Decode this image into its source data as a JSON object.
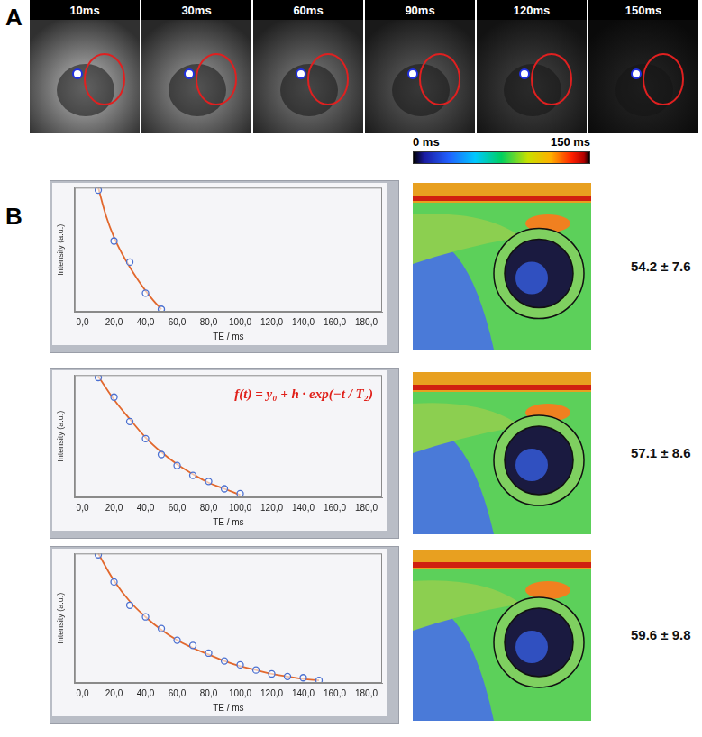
{
  "panel_labels": [
    "A",
    "B"
  ],
  "images": {
    "labels": [
      "10ms",
      "30ms",
      "60ms",
      "90ms",
      "120ms",
      "150ms"
    ]
  },
  "colorbar": {
    "range": [
      0,
      150
    ],
    "ticks": [
      {
        "value": 0,
        "label": "0 ms"
      },
      {
        "value": 150,
        "label": "150 ms"
      }
    ]
  },
  "maps": {
    "results": [
      "54.2 ± 7.6",
      "57.1 ± 8.6",
      "59.6 ± 9.8"
    ]
  },
  "chart_data": [
    {
      "type": "scatter",
      "x_label": "TE / ms",
      "y_label": "Intensity (a.u.)",
      "xlim": [
        -5,
        190
      ],
      "ylim": [
        0,
        100
      ],
      "tick_labels": "x",
      "grid": false,
      "xticks": [
        {
          "value": 0,
          "label": "0,0"
        },
        {
          "value": 20,
          "label": "20,0"
        },
        {
          "value": 40,
          "label": "40,0"
        },
        {
          "value": 60,
          "label": "60,0"
        },
        {
          "value": 80,
          "label": "80,0"
        },
        {
          "value": 100,
          "label": "100,0"
        },
        {
          "value": 120,
          "label": "120,0"
        },
        {
          "value": 140,
          "label": "140,0"
        },
        {
          "value": 160,
          "label": "160,0"
        },
        {
          "value": 180,
          "label": "180,0"
        }
      ],
      "series": [
        {
          "type": "scatter",
          "marker": "circle",
          "color": "#4a6fd0",
          "x": [
            10,
            20,
            30,
            40,
            50
          ],
          "values": [
            98,
            57,
            40,
            15,
            2
          ]
        },
        {
          "type": "line",
          "marker": "none",
          "line_style": "solid",
          "color": "#e2682e",
          "x": [
            10,
            15,
            20,
            25,
            30,
            35,
            40,
            45,
            50
          ],
          "values": [
            100,
            77,
            60,
            47,
            36,
            26,
            17,
            9,
            2
          ]
        }
      ]
    },
    {
      "type": "scatter",
      "x_label": "TE / ms",
      "y_label": "Intensity (a.u.)",
      "xlim": [
        -5,
        190
      ],
      "ylim": [
        0,
        100
      ],
      "tick_labels": "x",
      "grid": false,
      "annotation": "f(t) = y₀ + h · exp(−t / T₂)",
      "xticks": [
        {
          "value": 0,
          "label": "0,0"
        },
        {
          "value": 20,
          "label": "20,0"
        },
        {
          "value": 40,
          "label": "40,0"
        },
        {
          "value": 60,
          "label": "60,0"
        },
        {
          "value": 80,
          "label": "80,0"
        },
        {
          "value": 100,
          "label": "100,0"
        },
        {
          "value": 120,
          "label": "120,0"
        },
        {
          "value": 140,
          "label": "140,0"
        },
        {
          "value": 160,
          "label": "160,0"
        },
        {
          "value": 180,
          "label": "180,0"
        }
      ],
      "series": [
        {
          "type": "scatter",
          "marker": "circle",
          "color": "#4a6fd0",
          "x": [
            10,
            20,
            30,
            40,
            50,
            60,
            70,
            80,
            90,
            100
          ],
          "values": [
            98,
            82,
            62,
            48,
            35,
            26,
            18,
            13,
            7,
            3
          ]
        },
        {
          "type": "line",
          "marker": "none",
          "line_style": "solid",
          "color": "#e2682e",
          "x": [
            10,
            20,
            30,
            40,
            50,
            60,
            70,
            80,
            90,
            100
          ],
          "values": [
            99,
            80,
            64,
            49,
            37,
            27,
            19,
            12,
            7,
            2
          ]
        }
      ]
    },
    {
      "type": "scatter",
      "x_label": "TE / ms",
      "y_label": "Intensity (a.u.)",
      "xlim": [
        -5,
        190
      ],
      "ylim": [
        0,
        100
      ],
      "tick_labels": "x",
      "grid": false,
      "xticks": [
        {
          "value": 0,
          "label": "0,0"
        },
        {
          "value": 20,
          "label": "20,0"
        },
        {
          "value": 40,
          "label": "40,0"
        },
        {
          "value": 60,
          "label": "60,0"
        },
        {
          "value": 80,
          "label": "80,0"
        },
        {
          "value": 100,
          "label": "100,0"
        },
        {
          "value": 120,
          "label": "120,0"
        },
        {
          "value": 140,
          "label": "140,0"
        },
        {
          "value": 160,
          "label": "160,0"
        },
        {
          "value": 180,
          "label": "180,0"
        }
      ],
      "series": [
        {
          "type": "scatter",
          "marker": "circle",
          "color": "#4a6fd0",
          "x": [
            10,
            20,
            30,
            40,
            50,
            60,
            70,
            80,
            90,
            100,
            110,
            120,
            130,
            140,
            150
          ],
          "values": [
            99,
            78,
            60,
            51,
            42,
            33,
            29,
            23,
            17,
            14,
            10,
            7,
            5,
            4,
            2
          ]
        },
        {
          "type": "line",
          "marker": "none",
          "line_style": "solid",
          "color": "#e2682e",
          "x": [
            10,
            20,
            30,
            40,
            50,
            60,
            70,
            80,
            90,
            100,
            110,
            120,
            130,
            140,
            150
          ],
          "values": [
            100,
            79,
            63,
            51,
            41,
            33,
            27,
            22,
            17,
            13,
            10,
            7,
            5,
            3,
            2
          ]
        }
      ]
    }
  ]
}
